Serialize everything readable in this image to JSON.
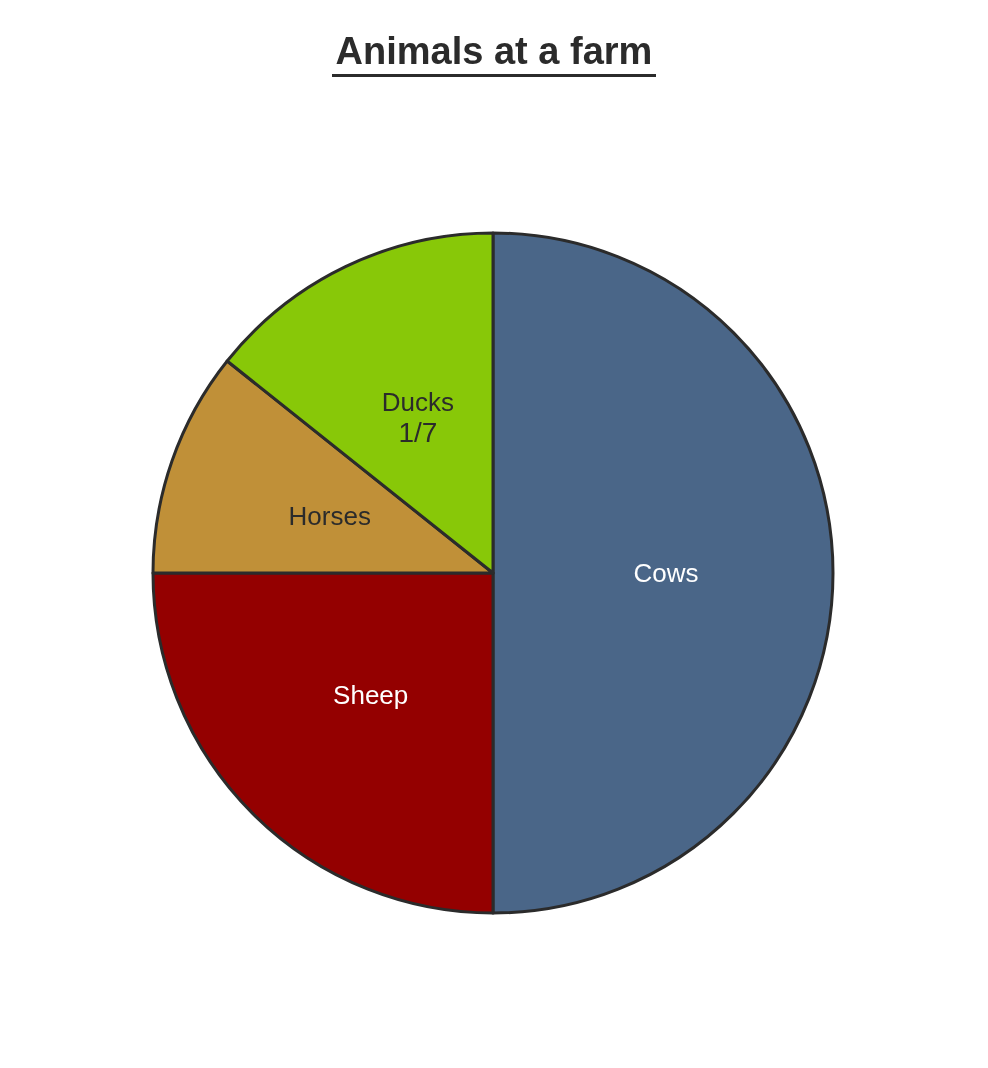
{
  "chart_data": {
    "type": "pie",
    "title": "Animals at a farm",
    "categories": [
      "Cows",
      "Sheep",
      "Horses",
      "Ducks"
    ],
    "values": [
      50,
      25,
      10.7143,
      14.2857
    ],
    "colors": [
      "#4a6688",
      "#940000",
      "#c09038",
      "#88c808"
    ],
    "value_labels": [
      null,
      null,
      null,
      "1/7"
    ]
  }
}
